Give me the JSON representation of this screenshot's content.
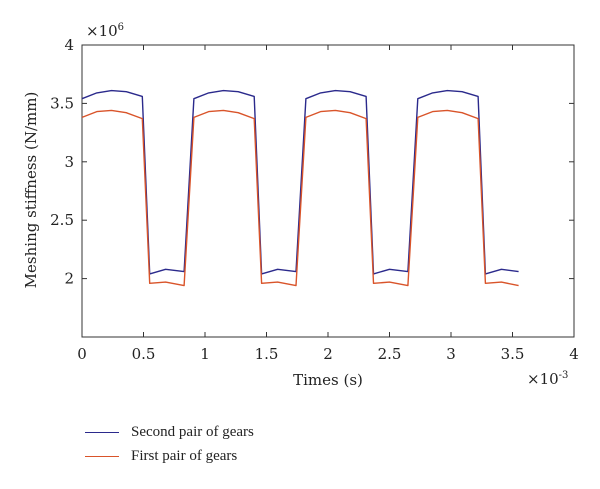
{
  "chart_data": {
    "type": "line",
    "title": "",
    "xlabel": "Times (s)",
    "ylabel": "Meshing stiffness (N/mm)",
    "x_multiplier": "×10-3",
    "y_multiplier": "×10^6",
    "xlim": [
      0,
      4
    ],
    "ylim": [
      1.5,
      4
    ],
    "xticks": [
      "0",
      "0.5",
      "1",
      "1.5",
      "2",
      "2.5",
      "3",
      "3.5",
      "4"
    ],
    "yticks": [
      "2",
      "2.5",
      "3",
      "3.5",
      "4"
    ],
    "grid": false,
    "legend_position": "below",
    "series": [
      {
        "name": "Second pair of gears",
        "color": "#2b2a8c",
        "x": [
          0,
          0.12,
          0.24,
          0.36,
          0.49,
          0.55,
          0.68,
          0.83,
          0.91,
          1.03,
          1.15,
          1.27,
          1.4,
          1.46,
          1.59,
          1.74,
          1.82,
          1.94,
          2.06,
          2.18,
          2.31,
          2.37,
          2.5,
          2.65,
          2.73,
          2.85,
          2.97,
          3.09,
          3.22,
          3.28,
          3.41,
          3.55
        ],
        "y": [
          3.54,
          3.59,
          3.61,
          3.6,
          3.56,
          2.04,
          2.08,
          2.06,
          3.54,
          3.59,
          3.61,
          3.6,
          3.56,
          2.04,
          2.08,
          2.06,
          3.54,
          3.59,
          3.61,
          3.6,
          3.56,
          2.04,
          2.08,
          2.06,
          3.54,
          3.59,
          3.61,
          3.6,
          3.56,
          2.04,
          2.08,
          2.06
        ]
      },
      {
        "name": "First pair of gears",
        "color": "#d9542a",
        "x": [
          0,
          0.12,
          0.24,
          0.36,
          0.49,
          0.55,
          0.68,
          0.83,
          0.91,
          1.03,
          1.15,
          1.27,
          1.4,
          1.46,
          1.59,
          1.74,
          1.82,
          1.94,
          2.06,
          2.18,
          2.31,
          2.37,
          2.5,
          2.65,
          2.73,
          2.85,
          2.97,
          3.09,
          3.22,
          3.28,
          3.41,
          3.55
        ],
        "y": [
          3.38,
          3.43,
          3.44,
          3.42,
          3.37,
          1.96,
          1.97,
          1.94,
          3.38,
          3.43,
          3.44,
          3.42,
          3.37,
          1.96,
          1.97,
          1.94,
          3.38,
          3.43,
          3.44,
          3.42,
          3.37,
          1.96,
          1.97,
          1.94,
          3.38,
          3.43,
          3.44,
          3.42,
          3.37,
          1.96,
          1.97,
          1.94
        ]
      }
    ]
  },
  "legend": {
    "items": [
      {
        "label": "Second pair of gears",
        "color": "#2b2a8c"
      },
      {
        "label": "First pair of gears",
        "color": "#d9542a"
      }
    ]
  }
}
